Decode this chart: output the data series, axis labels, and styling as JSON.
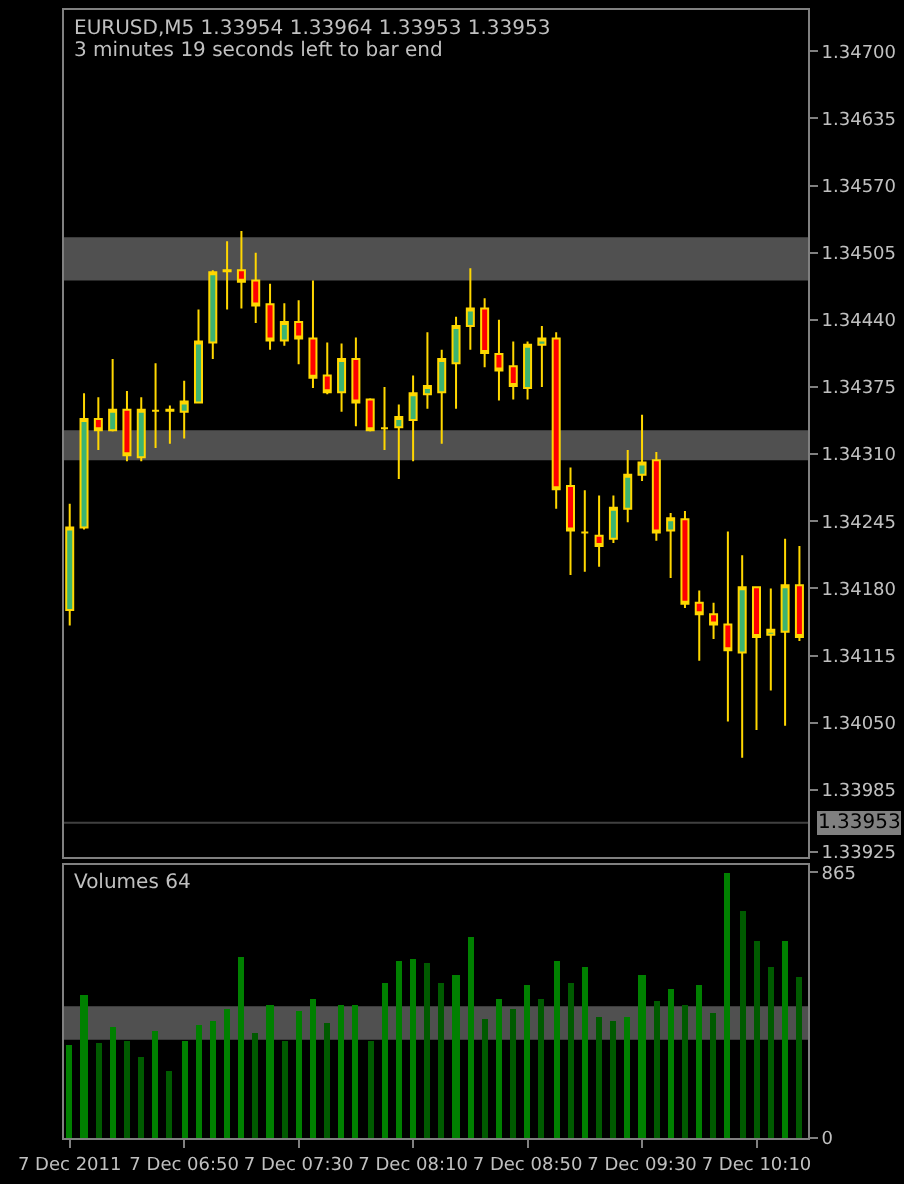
{
  "chart_data": [
    {
      "type": "candlestick",
      "title": "EURUSD,M5 1.33954 1.33964 1.33953 1.33953",
      "subtitle": "3 minutes 19 seconds left to bar end",
      "x": [
        "2011-12-07T06:10",
        "2011-12-07T06:15",
        "2011-12-07T06:20",
        "2011-12-07T06:25",
        "2011-12-07T06:30",
        "2011-12-07T06:35",
        "2011-12-07T06:40",
        "2011-12-07T06:45",
        "2011-12-07T06:50",
        "2011-12-07T06:55",
        "2011-12-07T07:00",
        "2011-12-07T07:05",
        "2011-12-07T07:10",
        "2011-12-07T07:15",
        "2011-12-07T07:20",
        "2011-12-07T07:25",
        "2011-12-07T07:30",
        "2011-12-07T07:35",
        "2011-12-07T07:40",
        "2011-12-07T07:45",
        "2011-12-07T07:50",
        "2011-12-07T07:55",
        "2011-12-07T08:00",
        "2011-12-07T08:05",
        "2011-12-07T08:10",
        "2011-12-07T08:15",
        "2011-12-07T08:20",
        "2011-12-07T08:25",
        "2011-12-07T08:30",
        "2011-12-07T08:35",
        "2011-12-07T08:40",
        "2011-12-07T08:45",
        "2011-12-07T08:50",
        "2011-12-07T08:55",
        "2011-12-07T09:00",
        "2011-12-07T09:05",
        "2011-12-07T09:10",
        "2011-12-07T09:15",
        "2011-12-07T09:20",
        "2011-12-07T09:25",
        "2011-12-07T09:30",
        "2011-12-07T09:35",
        "2011-12-07T09:40",
        "2011-12-07T09:45",
        "2011-12-07T09:50",
        "2011-12-07T09:55",
        "2011-12-07T10:00",
        "2011-12-07T10:05",
        "2011-12-07T10:10",
        "2011-12-07T10:15",
        "2011-12-07T10:20",
        "2011-12-07T10:25"
      ],
      "ohlc": [
        [
          1.34159,
          1.34262,
          1.34144,
          1.34239
        ],
        [
          1.34239,
          1.34369,
          1.34237,
          1.34344
        ],
        [
          1.34344,
          1.34365,
          1.34314,
          1.34333
        ],
        [
          1.34333,
          1.34402,
          1.34332,
          1.34353
        ],
        [
          1.34353,
          1.34371,
          1.34303,
          1.34309
        ],
        [
          1.34307,
          1.34365,
          1.34303,
          1.34353
        ],
        [
          1.34352,
          1.34398,
          1.34316,
          1.34352
        ],
        [
          1.34352,
          1.34357,
          1.3432,
          1.34353
        ],
        [
          1.34351,
          1.34381,
          1.34325,
          1.34361
        ],
        [
          1.3436,
          1.3445,
          1.3436,
          1.34419
        ],
        [
          1.34418,
          1.34488,
          1.34402,
          1.34486
        ],
        [
          1.34488,
          1.34516,
          1.3445,
          1.34487
        ],
        [
          1.34488,
          1.34526,
          1.34451,
          1.34477
        ],
        [
          1.34478,
          1.34505,
          1.34437,
          1.34454
        ],
        [
          1.34455,
          1.34475,
          1.34411,
          1.3442
        ],
        [
          1.3442,
          1.34456,
          1.34415,
          1.34438
        ],
        [
          1.34438,
          1.34459,
          1.34397,
          1.34422
        ],
        [
          1.34422,
          1.34478,
          1.34374,
          1.34384
        ],
        [
          1.34386,
          1.34418,
          1.34368,
          1.3437
        ],
        [
          1.3437,
          1.34417,
          1.34351,
          1.34402
        ],
        [
          1.34402,
          1.34423,
          1.34337,
          1.3436
        ],
        [
          1.34363,
          1.34364,
          1.34332,
          1.34333
        ],
        [
          1.34335,
          1.34375,
          1.34314,
          1.34335
        ],
        [
          1.34336,
          1.34358,
          1.34286,
          1.34346
        ],
        [
          1.34343,
          1.34386,
          1.34303,
          1.34369
        ],
        [
          1.34368,
          1.34428,
          1.34354,
          1.34376
        ],
        [
          1.3437,
          1.34411,
          1.3432,
          1.34402
        ],
        [
          1.34398,
          1.34443,
          1.34354,
          1.34434
        ],
        [
          1.34434,
          1.3449,
          1.34411,
          1.34451
        ],
        [
          1.34451,
          1.34461,
          1.34394,
          1.34408
        ],
        [
          1.34407,
          1.3444,
          1.34362,
          1.34391
        ],
        [
          1.34395,
          1.34419,
          1.34363,
          1.34376
        ],
        [
          1.34374,
          1.34419,
          1.34363,
          1.34416
        ],
        [
          1.34416,
          1.34434,
          1.34375,
          1.34422
        ],
        [
          1.34422,
          1.34428,
          1.34257,
          1.34276
        ],
        [
          1.34279,
          1.34297,
          1.34193,
          1.34236
        ],
        [
          1.34234,
          1.34275,
          1.34196,
          1.34234
        ],
        [
          1.34231,
          1.3427,
          1.34201,
          1.34221
        ],
        [
          1.34228,
          1.3427,
          1.34224,
          1.34258
        ],
        [
          1.34257,
          1.34314,
          1.34244,
          1.3429
        ],
        [
          1.3429,
          1.34348,
          1.34284,
          1.34302
        ],
        [
          1.34304,
          1.34312,
          1.34226,
          1.34234
        ],
        [
          1.34236,
          1.34253,
          1.3419,
          1.34248
        ],
        [
          1.34247,
          1.34255,
          1.34161,
          1.34165
        ],
        [
          1.34166,
          1.34178,
          1.3411,
          1.34155
        ],
        [
          1.34155,
          1.34166,
          1.34131,
          1.34145
        ],
        [
          1.34145,
          1.34235,
          1.34051,
          1.3412
        ],
        [
          1.34118,
          1.34212,
          1.34016,
          1.34181
        ],
        [
          1.34181,
          1.34181,
          1.34043,
          1.34133
        ],
        [
          1.34135,
          1.3418,
          1.34081,
          1.3414
        ],
        [
          1.34138,
          1.34228,
          1.34047,
          1.34183
        ],
        [
          1.34183,
          1.34221,
          1.34129,
          1.34133
        ]
      ],
      "xlim": [
        "2011-12-07T06:08",
        "2011-12-07T10:28"
      ],
      "ylim": [
        1.3392,
        1.3474
      ],
      "yticks": [
        {
          "value": 1.347,
          "label": "1.34700"
        },
        {
          "value": 1.34635,
          "label": "1.34635"
        },
        {
          "value": 1.3457,
          "label": "1.34570"
        },
        {
          "value": 1.34505,
          "label": "1.34505"
        },
        {
          "value": 1.3444,
          "label": "1.34440"
        },
        {
          "value": 1.34375,
          "label": "1.34375"
        },
        {
          "value": 1.3431,
          "label": "1.34310"
        },
        {
          "value": 1.34245,
          "label": "1.34245"
        },
        {
          "value": 1.3418,
          "label": "1.34180"
        },
        {
          "value": 1.34115,
          "label": "1.34115"
        },
        {
          "value": 1.3405,
          "label": "1.34050"
        },
        {
          "value": 1.33985,
          "label": "1.33985"
        },
        {
          "value": 1.33925,
          "label": "1.33925"
        }
      ],
      "ref_lines": [
        {
          "axis": "y",
          "value": 1.33953,
          "label": "1.33953",
          "color": "#404040"
        }
      ],
      "bands": [
        {
          "axis": "y",
          "from": 1.34478,
          "to": 1.3452,
          "color": "#505050"
        },
        {
          "axis": "y",
          "from": 1.34304,
          "to": 1.34333,
          "color": "#505050"
        }
      ],
      "tick_labels": "y"
    },
    {
      "type": "bar",
      "title": "Volumes 64",
      "x": [
        "2011-12-07T06:10",
        "2011-12-07T06:15",
        "2011-12-07T06:20",
        "2011-12-07T06:25",
        "2011-12-07T06:30",
        "2011-12-07T06:35",
        "2011-12-07T06:40",
        "2011-12-07T06:45",
        "2011-12-07T06:50",
        "2011-12-07T06:55",
        "2011-12-07T07:00",
        "2011-12-07T07:05",
        "2011-12-07T07:10",
        "2011-12-07T07:15",
        "2011-12-07T07:20",
        "2011-12-07T07:25",
        "2011-12-07T07:30",
        "2011-12-07T07:35",
        "2011-12-07T07:40",
        "2011-12-07T07:45",
        "2011-12-07T07:50",
        "2011-12-07T07:55",
        "2011-12-07T08:00",
        "2011-12-07T08:05",
        "2011-12-07T08:10",
        "2011-12-07T08:15",
        "2011-12-07T08:20",
        "2011-12-07T08:25",
        "2011-12-07T08:30",
        "2011-12-07T08:35",
        "2011-12-07T08:40",
        "2011-12-07T08:45",
        "2011-12-07T08:50",
        "2011-12-07T08:55",
        "2011-12-07T09:00",
        "2011-12-07T09:05",
        "2011-12-07T09:10",
        "2011-12-07T09:15",
        "2011-12-07T09:20",
        "2011-12-07T09:25",
        "2011-12-07T09:30",
        "2011-12-07T09:35",
        "2011-12-07T09:40",
        "2011-12-07T09:45",
        "2011-12-07T09:50",
        "2011-12-07T09:55",
        "2011-12-07T10:00",
        "2011-12-07T10:05",
        "2011-12-07T10:10",
        "2011-12-07T10:15",
        "2011-12-07T10:20",
        "2011-12-07T10:25"
      ],
      "values": [
        301,
        467,
        310,
        363,
        317,
        264,
        349,
        218,
        317,
        369,
        382,
        422,
        590,
        343,
        435,
        317,
        415,
        454,
        376,
        435,
        435,
        317,
        507,
        579,
        585,
        572,
        507,
        533,
        657,
        389,
        454,
        422,
        500,
        454,
        579,
        507,
        559,
        395,
        382,
        395,
        533,
        448,
        487,
        435,
        500,
        408,
        865,
        743,
        644,
        559,
        644,
        526
      ],
      "colors": [
        "#008000",
        "#008000",
        "#005a00",
        "#008000",
        "#005a00",
        "#005a00",
        "#008000",
        "#005a00",
        "#008000",
        "#008000",
        "#008000",
        "#008000",
        "#008000",
        "#005a00",
        "#008000",
        "#005a00",
        "#008000",
        "#008000",
        "#005a00",
        "#008000",
        "#008000",
        "#005a00",
        "#008000",
        "#008000",
        "#008000",
        "#005a00",
        "#005a00",
        "#008000",
        "#008000",
        "#005a00",
        "#008000",
        "#005a00",
        "#008000",
        "#005a00",
        "#008000",
        "#005a00",
        "#008000",
        "#005a00",
        "#005a00",
        "#008000",
        "#008000",
        "#005a00",
        "#008000",
        "#005a00",
        "#008000",
        "#005a00",
        "#008000",
        "#005a00",
        "#005a00",
        "#005a00",
        "#008000",
        "#005a00"
      ],
      "xlim": [
        "2011-12-07T06:08",
        "2011-12-07T10:28"
      ],
      "xticks": [
        {
          "value": "2011-12-07T06:10",
          "label": "7 Dec 2011"
        },
        {
          "value": "2011-12-07T06:50",
          "label": "7 Dec 06:50"
        },
        {
          "value": "2011-12-07T07:30",
          "label": "7 Dec 07:30"
        },
        {
          "value": "2011-12-07T08:10",
          "label": "7 Dec 08:10"
        },
        {
          "value": "2011-12-07T08:50",
          "label": "7 Dec 08:50"
        },
        {
          "value": "2011-12-07T09:30",
          "label": "7 Dec 09:30"
        },
        {
          "value": "2011-12-07T10:10",
          "label": "7 Dec 10:10"
        }
      ],
      "ylim": [
        0,
        890
      ],
      "yticks": [
        0,
        865
      ],
      "bands": [
        {
          "axis": "y",
          "from": 320,
          "to": 429,
          "color": "#505050"
        }
      ]
    }
  ]
}
